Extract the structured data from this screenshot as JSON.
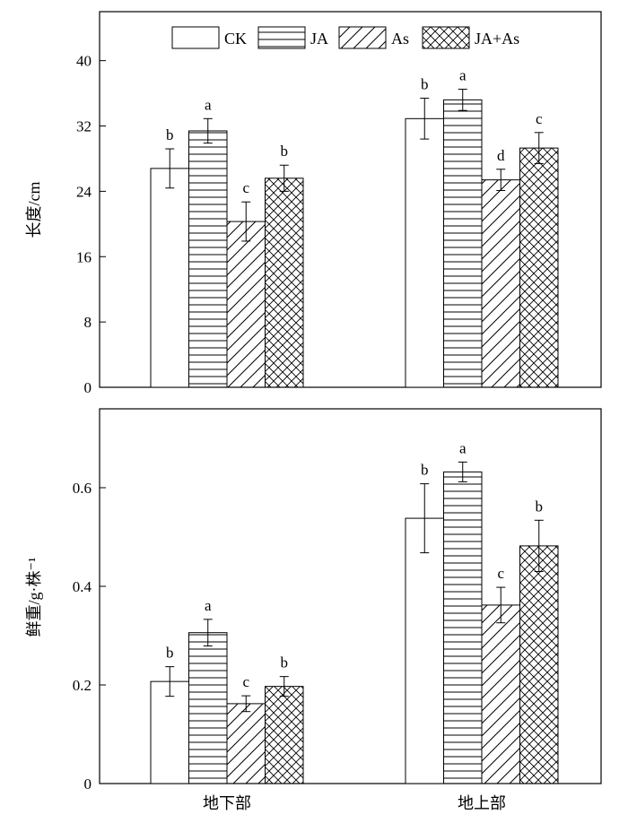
{
  "chart_data": [
    {
      "type": "bar",
      "panel": "top",
      "categories": [
        "地下部",
        "地上部"
      ],
      "ylabel": "长度/cm",
      "ylim": [
        0,
        46
      ],
      "yticks": [
        0,
        8,
        16,
        24,
        32,
        40
      ],
      "ytick_labels": [
        "0",
        "8",
        "16",
        "24",
        "32",
        "40"
      ],
      "grid": false,
      "legend": "top",
      "show_xtick_labels": false,
      "series": [
        {
          "name": "CK",
          "pattern": "none",
          "values": [
            26.8,
            32.9
          ],
          "errors": [
            2.4,
            2.5
          ],
          "letters": [
            "b",
            "b"
          ]
        },
        {
          "name": "JA",
          "pattern": "horizontal",
          "values": [
            31.4,
            35.2
          ],
          "errors": [
            1.5,
            1.3
          ],
          "letters": [
            "a",
            "a"
          ]
        },
        {
          "name": "As",
          "pattern": "diagonal",
          "values": [
            20.3,
            25.4
          ],
          "errors": [
            2.4,
            1.3
          ],
          "letters": [
            "c",
            "d"
          ]
        },
        {
          "name": "JA+As",
          "pattern": "crosshatch",
          "values": [
            25.6,
            29.3
          ],
          "errors": [
            1.6,
            1.9
          ],
          "letters": [
            "b",
            "c"
          ]
        }
      ]
    },
    {
      "type": "bar",
      "panel": "bottom",
      "categories": [
        "地下部",
        "地上部"
      ],
      "ylabel": "鲜重/g·株⁻¹",
      "ylim": [
        0,
        0.76
      ],
      "yticks": [
        0,
        0.2,
        0.4,
        0.6
      ],
      "ytick_labels": [
        "0",
        "0.2",
        "0.4",
        "0.6"
      ],
      "grid": false,
      "legend": "none",
      "show_xtick_labels": true,
      "series": [
        {
          "name": "CK",
          "pattern": "none",
          "values": [
            0.207,
            0.538
          ],
          "errors": [
            0.03,
            0.07
          ],
          "letters": [
            "b",
            "b"
          ]
        },
        {
          "name": "JA",
          "pattern": "horizontal",
          "values": [
            0.306,
            0.632
          ],
          "errors": [
            0.027,
            0.02
          ],
          "letters": [
            "a",
            "a"
          ]
        },
        {
          "name": "As",
          "pattern": "diagonal",
          "values": [
            0.162,
            0.362
          ],
          "errors": [
            0.016,
            0.036
          ],
          "letters": [
            "c",
            "c"
          ]
        },
        {
          "name": "JA+As",
          "pattern": "crosshatch",
          "values": [
            0.197,
            0.482
          ],
          "errors": [
            0.02,
            0.052
          ],
          "letters": [
            "b",
            "b"
          ]
        }
      ]
    }
  ]
}
